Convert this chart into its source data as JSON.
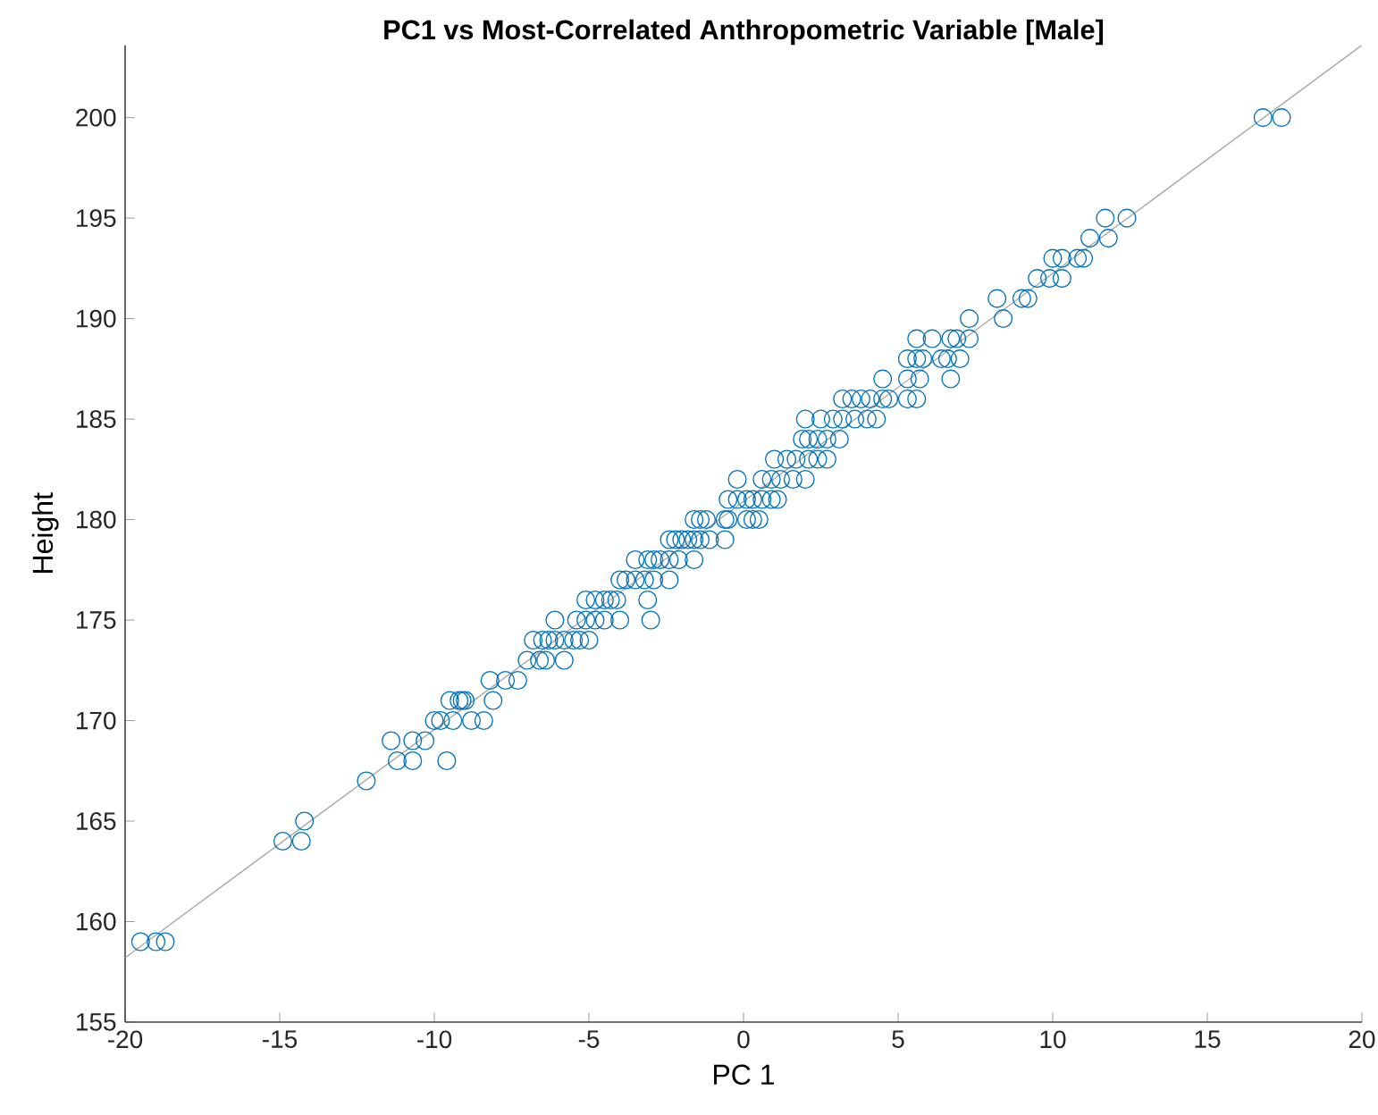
{
  "chart_data": {
    "type": "scatter",
    "title": "PC1 vs Most-Correlated Anthropometric Variable [Male]",
    "xlabel": "PC 1",
    "ylabel": "Height",
    "xlim": [
      -20,
      20
    ],
    "ylim": [
      155,
      203.6
    ],
    "xticks": [
      -20,
      -15,
      -10,
      -5,
      0,
      5,
      10,
      15,
      20
    ],
    "yticks": [
      155,
      160,
      165,
      170,
      175,
      180,
      185,
      190,
      195,
      200
    ],
    "marker": "circle",
    "series": [
      {
        "color": "#0072bd",
        "x": [
          -19.5,
          -19.0,
          -18.7,
          -14.9,
          -14.3,
          -14.2,
          -12.2,
          -11.2,
          -10.7,
          -9.6,
          -11.4,
          -10.7,
          -10.3,
          -10.0,
          -9.8,
          -9.4,
          -8.8,
          -8.4,
          -9.5,
          -9.2,
          -9.1,
          -9.0,
          -8.1,
          -8.2,
          -7.7,
          -7.3,
          -7.0,
          -6.6,
          -6.4,
          -5.8,
          -6.8,
          -6.5,
          -6.3,
          -6.1,
          -5.8,
          -5.5,
          -5.3,
          -5.0,
          -6.1,
          -5.4,
          -5.1,
          -4.8,
          -4.5,
          -4.0,
          -3.0,
          -5.1,
          -4.8,
          -4.5,
          -4.3,
          -4.1,
          -3.1,
          -4.0,
          -3.8,
          -3.5,
          -3.2,
          -2.9,
          -2.4,
          -3.5,
          -3.1,
          -2.9,
          -2.7,
          -2.4,
          -2.1,
          -1.6,
          -2.4,
          -2.2,
          -2.0,
          -1.8,
          -1.6,
          -1.4,
          -1.1,
          -0.6,
          -1.6,
          -1.4,
          -1.2,
          -0.6,
          -0.5,
          0.1,
          0.3,
          0.5,
          -0.5,
          -0.2,
          0.1,
          0.3,
          0.6,
          0.9,
          1.1,
          -0.2,
          0.6,
          0.9,
          1.2,
          1.6,
          2.0,
          1.0,
          1.4,
          1.7,
          2.1,
          2.4,
          2.7,
          1.9,
          2.1,
          2.4,
          2.7,
          3.1,
          2.0,
          2.5,
          2.9,
          3.2,
          3.6,
          4.0,
          4.3,
          3.2,
          3.5,
          3.8,
          4.1,
          4.5,
          4.7,
          5.3,
          5.6,
          4.5,
          5.3,
          5.7,
          6.7,
          5.3,
          5.6,
          5.8,
          6.4,
          6.6,
          7.0,
          5.6,
          6.1,
          6.7,
          6.9,
          7.3,
          7.3,
          8.4,
          8.2,
          9.0,
          9.2,
          9.5,
          9.9,
          10.3,
          10.0,
          10.3,
          10.8,
          11.0,
          11.2,
          11.8,
          11.7,
          12.4,
          16.8,
          17.4
        ],
        "values": [
          159,
          159,
          159,
          164,
          164,
          165,
          167,
          168,
          168,
          168,
          169,
          169,
          169,
          170,
          170,
          170,
          170,
          170,
          171,
          171,
          171,
          171,
          171,
          172,
          172,
          172,
          173,
          173,
          173,
          173,
          174,
          174,
          174,
          174,
          174,
          174,
          174,
          174,
          175,
          175,
          175,
          175,
          175,
          175,
          175,
          176,
          176,
          176,
          176,
          176,
          176,
          177,
          177,
          177,
          177,
          177,
          177,
          178,
          178,
          178,
          178,
          178,
          178,
          178,
          179,
          179,
          179,
          179,
          179,
          179,
          179,
          179,
          180,
          180,
          180,
          180,
          180,
          180,
          180,
          180,
          181,
          181,
          181,
          181,
          181,
          181,
          181,
          182,
          182,
          182,
          182,
          182,
          182,
          183,
          183,
          183,
          183,
          183,
          183,
          184,
          184,
          184,
          184,
          184,
          185,
          185,
          185,
          185,
          185,
          185,
          185,
          186,
          186,
          186,
          186,
          186,
          186,
          186,
          186,
          187,
          187,
          187,
          187,
          188,
          188,
          188,
          188,
          188,
          188,
          189,
          189,
          189,
          189,
          189,
          190,
          190,
          191,
          191,
          191,
          192,
          192,
          192,
          193,
          193,
          193,
          193,
          194,
          194,
          195,
          195,
          200,
          200
        ]
      },
      {
        "type": "line",
        "color": "#a6a6a6",
        "marker": "none",
        "x": [
          -20,
          20
        ],
        "values": [
          158.2,
          203.6
        ]
      }
    ]
  }
}
